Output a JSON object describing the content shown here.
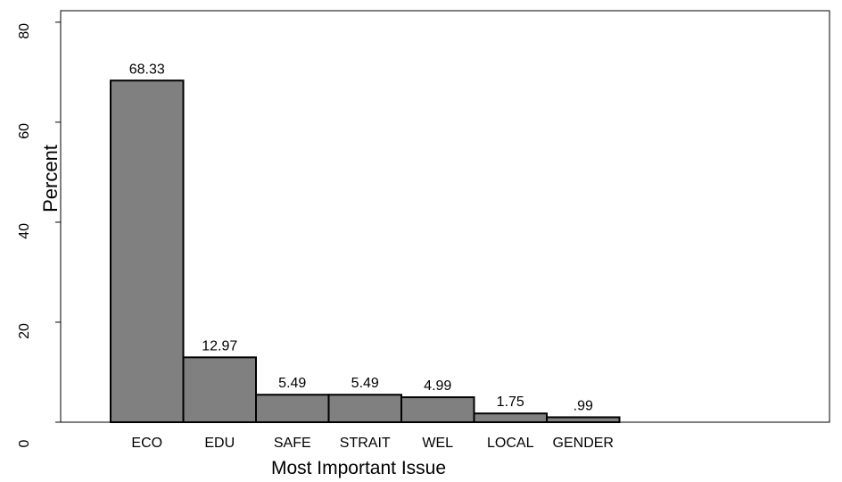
{
  "chart_data": {
    "type": "bar",
    "x_label": "Most Important Issue",
    "y_label": "Percent",
    "categories": [
      "ECO",
      "EDU",
      "SAFE",
      "STRAIT",
      "WEL",
      "LOCAL",
      "GENDER"
    ],
    "values": [
      68.33,
      12.97,
      5.49,
      5.49,
      4.99,
      1.75,
      0.99
    ],
    "value_labels": [
      "68.33",
      "12.97",
      "5.49",
      "5.49",
      "4.99",
      "1.75",
      ".99"
    ],
    "color": "#808080",
    "ylim": [
      0,
      82.3
    ],
    "yticks": [
      0,
      20,
      40,
      60,
      80
    ],
    "grid": false
  }
}
